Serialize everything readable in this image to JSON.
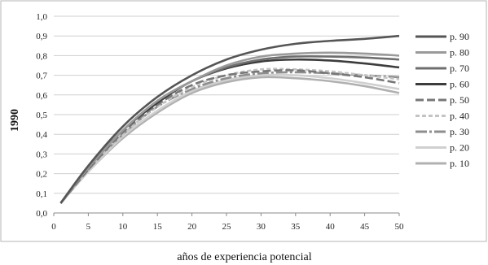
{
  "chart_data": {
    "type": "line",
    "title": "",
    "xlabel": "años de experiencia potencial",
    "ylabel": "1990",
    "xlim": [
      0,
      50
    ],
    "ylim": [
      0,
      1.0
    ],
    "grid": "horizontal",
    "legend_position": "right",
    "x_ticks": [
      "0",
      "5",
      "10",
      "15",
      "20",
      "25",
      "30",
      "35",
      "40",
      "45",
      "50"
    ],
    "y_ticks": [
      "0,0",
      "0,1",
      "0,2",
      "0,3",
      "0,4",
      "0,5",
      "0,6",
      "0,7",
      "0,8",
      "0,9",
      "1,0"
    ],
    "x": [
      1,
      5,
      10,
      15,
      20,
      25,
      30,
      35,
      40,
      45,
      50
    ],
    "series": [
      {
        "name": "p. 90",
        "color": "#555555",
        "dash": "solid",
        "values": [
          0.05,
          0.24,
          0.44,
          0.59,
          0.7,
          0.78,
          0.83,
          0.86,
          0.875,
          0.885,
          0.9
        ]
      },
      {
        "name": "p. 80",
        "color": "#9a9a9a",
        "dash": "solid",
        "values": [
          0.05,
          0.23,
          0.42,
          0.57,
          0.67,
          0.75,
          0.795,
          0.81,
          0.815,
          0.81,
          0.8
        ]
      },
      {
        "name": "p. 70",
        "color": "#6f6f6f",
        "dash": "solid",
        "values": [
          0.05,
          0.23,
          0.42,
          0.57,
          0.67,
          0.74,
          0.78,
          0.795,
          0.795,
          0.79,
          0.78
        ]
      },
      {
        "name": "p. 60",
        "color": "#3c3c3c",
        "dash": "solid",
        "values": [
          0.05,
          0.23,
          0.42,
          0.56,
          0.67,
          0.735,
          0.77,
          0.78,
          0.775,
          0.76,
          0.74
        ]
      },
      {
        "name": "p. 50",
        "color": "#777777",
        "dash": "10,4",
        "values": [
          0.05,
          0.22,
          0.41,
          0.55,
          0.65,
          0.7,
          0.72,
          0.725,
          0.71,
          0.69,
          0.66
        ]
      },
      {
        "name": "p. 40",
        "color": "#c4c4c4",
        "dash": "5,3",
        "values": [
          0.05,
          0.22,
          0.4,
          0.54,
          0.64,
          0.7,
          0.73,
          0.73,
          0.72,
          0.7,
          0.68
        ]
      },
      {
        "name": "p. 30",
        "color": "#8e8e8e",
        "dash": "14,3,3,3",
        "values": [
          0.05,
          0.22,
          0.4,
          0.54,
          0.63,
          0.685,
          0.71,
          0.715,
          0.71,
          0.7,
          0.69
        ]
      },
      {
        "name": "p. 20",
        "color": "#d0d0d0",
        "dash": "solid",
        "values": [
          0.05,
          0.21,
          0.39,
          0.52,
          0.62,
          0.675,
          0.7,
          0.7,
          0.685,
          0.66,
          0.63
        ]
      },
      {
        "name": "p. 10",
        "color": "#b0b0b0",
        "dash": "solid",
        "values": [
          0.05,
          0.21,
          0.38,
          0.51,
          0.61,
          0.665,
          0.69,
          0.685,
          0.67,
          0.645,
          0.61
        ]
      }
    ]
  }
}
